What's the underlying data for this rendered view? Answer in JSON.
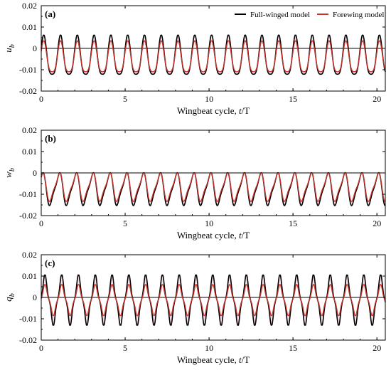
{
  "colors": {
    "full_winged": "#000000",
    "forewing": "#c8322a",
    "fill": "#f7b8dc",
    "zero_line": "#000000"
  },
  "legend": {
    "full_winged_label": "Full-winged  model",
    "forewing_label": "Forewing model"
  },
  "chart_data": [
    {
      "type": "line",
      "panel": "(a)",
      "xlabel": "Wingbeat cycle,  t/T",
      "ylabel": "u_b",
      "ylabel_main": "u",
      "ylabel_sub": "b",
      "xlabel_text": "Wingbeat cycle,  ",
      "xlabel_italic": "t",
      "xlabel_unit": "/T",
      "xlim": [
        0,
        20.5
      ],
      "ylim": [
        -0.02,
        0.02
      ],
      "xticks": [
        0,
        5,
        10,
        15,
        20
      ],
      "yticks": [
        -0.02,
        -0.01,
        0,
        0.01,
        0.02
      ],
      "ytick_labels": [
        "-0.02",
        "-0.01",
        "0",
        "0.01",
        "0.02"
      ],
      "zero_line": true,
      "legend_position": "top-right",
      "series": [
        {
          "name": "Full-winged  model",
          "cycles": 20.5,
          "max": 0.0062,
          "min": -0.016
        },
        {
          "name": "Forewing model",
          "cycles": 20.5,
          "max": 0.0035,
          "min": -0.014
        }
      ]
    },
    {
      "type": "line",
      "panel": "(b)",
      "xlabel": "Wingbeat cycle,  t/T",
      "ylabel": "w_b",
      "ylabel_main": "w",
      "ylabel_sub": "b",
      "xlabel_text": "Wingbeat cycle,  ",
      "xlabel_italic": "t",
      "xlabel_unit": "/T",
      "xlim": [
        0,
        20.5
      ],
      "ylim": [
        -0.02,
        0.02
      ],
      "xticks": [
        0,
        5,
        10,
        15,
        20
      ],
      "yticks": [
        -0.02,
        -0.01,
        0,
        0.01,
        0.02
      ],
      "ytick_labels": [
        "-0.02",
        "-0.01",
        "0",
        "0.01",
        "0.02"
      ],
      "zero_line": true,
      "series": [
        {
          "name": "Full-winged  model",
          "cycles": 20.5,
          "max": 0.0008,
          "min": -0.016
        },
        {
          "name": "Forewing model",
          "cycles": 20.5,
          "max": 0.0005,
          "min": -0.014
        }
      ]
    },
    {
      "type": "line",
      "panel": "(c)",
      "xlabel": "Wingbeat cycle,  t/T",
      "ylabel": "q_b",
      "ylabel_main": "q",
      "ylabel_sub": "b",
      "xlabel_text": "Wingbeat cycle,  ",
      "xlabel_italic": "t",
      "xlabel_unit": "/T",
      "xlim": [
        0,
        20.5
      ],
      "ylim": [
        -0.02,
        0.02
      ],
      "xticks": [
        0,
        5,
        10,
        15,
        20
      ],
      "yticks": [
        -0.02,
        -0.01,
        0,
        0.01,
        0.02
      ],
      "ytick_labels": [
        "-0.02",
        "-0.01",
        "0",
        "0.01",
        "0.02"
      ],
      "zero_line": true,
      "series": [
        {
          "name": "Full-winged  model",
          "cycles": 20.5,
          "max": 0.0105,
          "min": -0.013
        },
        {
          "name": "Forewing model",
          "cycles": 20.5,
          "max": 0.006,
          "min": -0.0085
        }
      ]
    }
  ]
}
